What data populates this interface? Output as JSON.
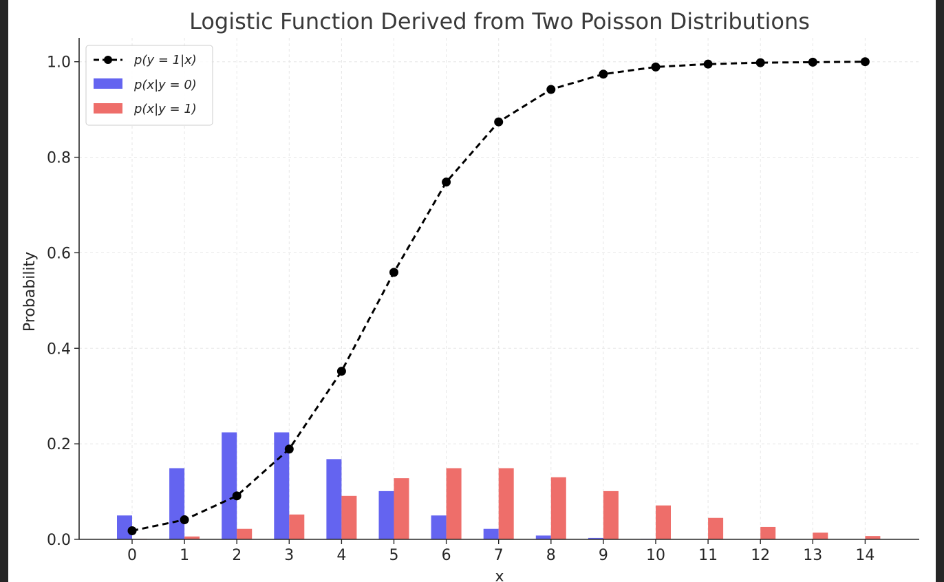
{
  "chart_data": {
    "type": "bar",
    "title": "Logistic Function Derived from Two Poisson Distributions",
    "xlabel": "x",
    "ylabel": "Probability",
    "categories": [
      "0",
      "1",
      "2",
      "3",
      "4",
      "5",
      "6",
      "7",
      "8",
      "9",
      "10",
      "11",
      "12",
      "13",
      "14"
    ],
    "x": [
      0,
      1,
      2,
      3,
      4,
      5,
      6,
      7,
      8,
      9,
      10,
      11,
      12,
      13,
      14
    ],
    "ylim": [
      0,
      1.05
    ],
    "yticks": [
      "0.0",
      "0.2",
      "0.4",
      "0.6",
      "0.8",
      "1.0"
    ],
    "grid": true,
    "legend_position": "top-left",
    "series": [
      {
        "name": "p(y=1|x)",
        "legend_label": "p(y = 1|x)",
        "kind": "line",
        "style": "dashed",
        "marker": "circle",
        "color": "#000000",
        "values": [
          0.018,
          0.041,
          0.091,
          0.189,
          0.352,
          0.559,
          0.748,
          0.874,
          0.942,
          0.974,
          0.989,
          0.995,
          0.998,
          0.999,
          1.0
        ]
      },
      {
        "name": "p(x|y=0)",
        "legend_label": "p(x|y = 0)",
        "kind": "bar",
        "color": "#6464f0",
        "values": [
          0.05,
          0.149,
          0.224,
          0.224,
          0.168,
          0.101,
          0.05,
          0.022,
          0.008,
          0.003,
          0.001,
          0.0,
          0.0,
          0.0,
          0.0
        ]
      },
      {
        "name": "p(x|y=1)",
        "legend_label": "p(x|y = 1)",
        "kind": "bar",
        "color": "#ee6e6a",
        "values": [
          0.001,
          0.006,
          0.022,
          0.052,
          0.091,
          0.128,
          0.149,
          0.149,
          0.13,
          0.101,
          0.071,
          0.045,
          0.026,
          0.014,
          0.007
        ]
      }
    ]
  }
}
